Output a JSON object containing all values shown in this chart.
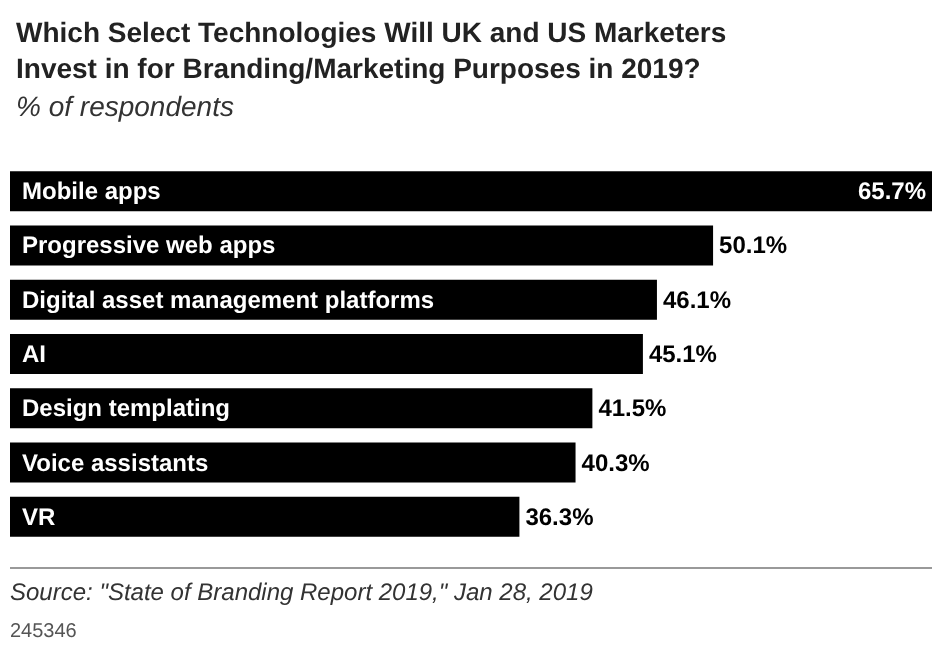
{
  "chart_data": {
    "type": "bar",
    "orientation": "horizontal",
    "title": "Which Select Technologies Will UK and US Marketers\nInvest in for Branding/Marketing Purposes in 2019?",
    "subtitle": "% of respondents",
    "categories": [
      "Mobile apps",
      "Progressive web apps",
      "Digital asset management platforms",
      "AI",
      "Design templating",
      "Voice assistants",
      "VR"
    ],
    "values": [
      65.7,
      50.1,
      46.1,
      45.1,
      41.5,
      40.3,
      36.3
    ],
    "value_labels": [
      "65.7%",
      "50.1%",
      "46.1%",
      "45.1%",
      "41.5%",
      "40.3%",
      "36.3%"
    ],
    "color": "#000000",
    "annotations": [
      "Source: \"State of Branding Report 2019,\" Jan 28, 2019",
      "245346"
    ]
  }
}
